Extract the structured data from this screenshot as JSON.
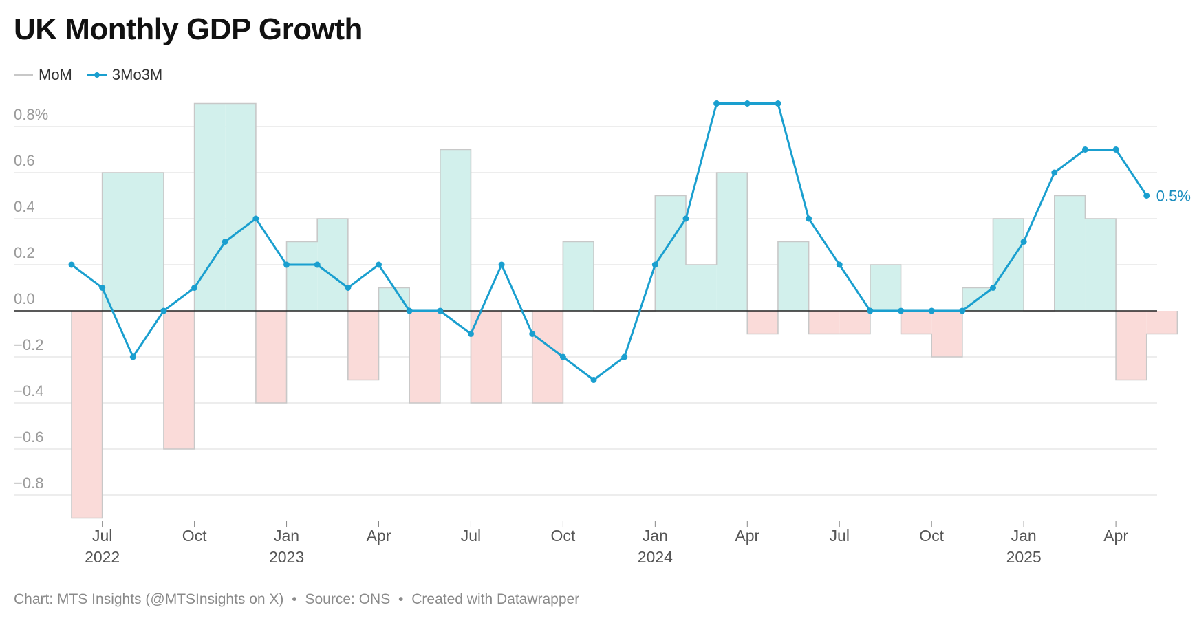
{
  "chart_data": {
    "type": "bar+line",
    "title": "UK Monthly GDP Growth",
    "xlabel": "",
    "ylabel": "",
    "ylim": [
      -0.9,
      0.9
    ],
    "yticks": [
      0.8,
      0.6,
      0.4,
      0.2,
      0.0,
      -0.2,
      -0.4,
      -0.6,
      -0.8
    ],
    "ytick_labels": [
      "0.8%",
      "0.6",
      "0.4",
      "0.2",
      "0.0",
      "−0.2",
      "−0.4",
      "−0.6",
      "−0.8"
    ],
    "months": [
      "2022-06",
      "2022-07",
      "2022-08",
      "2022-09",
      "2022-10",
      "2022-11",
      "2022-12",
      "2023-01",
      "2023-02",
      "2023-03",
      "2023-04",
      "2023-05",
      "2023-06",
      "2023-07",
      "2023-08",
      "2023-09",
      "2023-10",
      "2023-11",
      "2023-12",
      "2024-01",
      "2024-02",
      "2024-03",
      "2024-04",
      "2024-05",
      "2024-06",
      "2024-07",
      "2024-08",
      "2024-09",
      "2024-10",
      "2024-11",
      "2024-12",
      "2025-01",
      "2025-02",
      "2025-03",
      "2025-04",
      "2025-05"
    ],
    "x_ticks": [
      {
        "month_index": 1,
        "label": "Jul",
        "year": "2022"
      },
      {
        "month_index": 4,
        "label": "Oct",
        "year": ""
      },
      {
        "month_index": 7,
        "label": "Jan",
        "year": "2023"
      },
      {
        "month_index": 10,
        "label": "Apr",
        "year": ""
      },
      {
        "month_index": 13,
        "label": "Jul",
        "year": ""
      },
      {
        "month_index": 16,
        "label": "Oct",
        "year": ""
      },
      {
        "month_index": 19,
        "label": "Jan",
        "year": "2024"
      },
      {
        "month_index": 22,
        "label": "Apr",
        "year": ""
      },
      {
        "month_index": 25,
        "label": "Jul",
        "year": ""
      },
      {
        "month_index": 28,
        "label": "Oct",
        "year": ""
      },
      {
        "month_index": 31,
        "label": "Jan",
        "year": "2025"
      },
      {
        "month_index": 34,
        "label": "Apr",
        "year": ""
      }
    ],
    "series": [
      {
        "name": "MoM",
        "type": "step-area",
        "values": [
          -0.9,
          0.6,
          0.6,
          -0.6,
          0.9,
          0.9,
          -0.4,
          0.3,
          0.4,
          -0.3,
          0.1,
          -0.4,
          0.7,
          -0.4,
          0.0,
          -0.4,
          0.3,
          0.0,
          0.0,
          0.5,
          0.2,
          0.6,
          -0.1,
          0.3,
          -0.1,
          -0.1,
          0.2,
          -0.1,
          -0.2,
          0.1,
          0.4,
          0.0,
          0.5,
          0.4,
          -0.3,
          -0.1
        ]
      },
      {
        "name": "3Mo3M",
        "type": "line",
        "values": [
          0.2,
          0.1,
          -0.2,
          0.0,
          0.1,
          0.3,
          0.4,
          0.2,
          0.2,
          0.1,
          0.2,
          0.0,
          0.0,
          -0.1,
          0.2,
          -0.1,
          -0.2,
          -0.3,
          -0.2,
          0.2,
          0.4,
          0.9,
          0.9,
          0.9,
          0.4,
          0.2,
          0.0,
          0.0,
          0.0,
          0.0,
          0.1,
          0.3,
          0.6,
          0.7,
          0.7,
          0.5
        ],
        "end_label": "0.5%"
      }
    ],
    "colors": {
      "positive_fill": "#d2f0ec",
      "negative_fill": "#fadbd9",
      "step_stroke": "#c8c8c8",
      "line": "#1a9fcf",
      "end_label": "#1a8dbf",
      "zero_line": "#222222",
      "grid": "#e2e2e2",
      "tick_text": "#9a9a9a",
      "x_text": "#555555"
    }
  },
  "legend": {
    "mom_label": "MoM",
    "three_m_label": "3Mo3M"
  },
  "footer": {
    "chart_credit": "Chart: MTS Insights (@MTSInsights on X)",
    "source": "Source: ONS",
    "created_with": "Created with Datawrapper",
    "separator": "•"
  }
}
